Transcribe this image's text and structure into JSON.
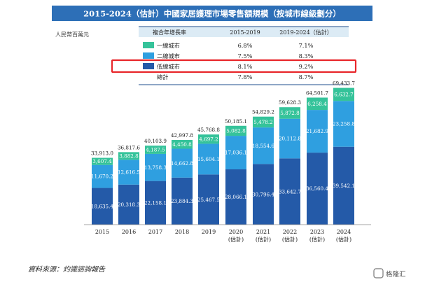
{
  "title": "2015-2024（估計）中國家居護理市場零售額規模（按城市線級劃分）",
  "unit_label": "人民幣百萬元",
  "table": {
    "header": [
      "複合年增長率",
      "2015-2019",
      "2019-2024（估計）"
    ],
    "rows": [
      {
        "label": "一線城市",
        "c1": "6.8%",
        "c2": "7.1%",
        "swatch": "#35c39a"
      },
      {
        "label": "二線城市",
        "c1": "7.5%",
        "c2": "8.3%",
        "swatch": "#2f9fe0"
      },
      {
        "label": "低線城市",
        "c1": "8.1%",
        "c2": "9.2%",
        "swatch": "#245aa8",
        "highlighted": true
      },
      {
        "label": "總計",
        "c1": "7.8%",
        "c2": "8.7%",
        "swatch": null
      }
    ],
    "highlight_color": "#e8262a"
  },
  "chart_data": {
    "type": "bar",
    "stacked": true,
    "categories": [
      "2015",
      "2016",
      "2017",
      "2018",
      "2019",
      "2020",
      "2021",
      "2022",
      "2023",
      "2024"
    ],
    "category_sublabels": [
      "",
      "",
      "",
      "",
      "",
      "(估計)",
      "(估計)",
      "(估計)",
      "(估計)",
      "(估計)"
    ],
    "series": [
      {
        "name": "低線城市",
        "color": "#245aa8",
        "values": [
          18635.4,
          20318.3,
          22158.1,
          23884.3,
          25467.5,
          28066.1,
          30796.4,
          33642.7,
          36560.4,
          39542.1
        ],
        "labels": [
          "18,635.4",
          "20,318.3",
          "22,158.1",
          "23,884.3",
          "25,467.5",
          "28,066.1",
          "30,796.4",
          "33,642.7",
          "36,560.4",
          "39,542.1"
        ]
      },
      {
        "name": "二線城市",
        "color": "#2f9fe0",
        "values": [
          11670.2,
          12616.5,
          13758.3,
          14662.8,
          15604.1,
          17036.1,
          18554.6,
          20112.8,
          21682.9,
          23258.8
        ],
        "labels": [
          "11,670.2",
          "12,616.5",
          "13,758.3",
          "14,662.8",
          "15,604.1",
          "17,036.1",
          "18,554.6",
          "20,112.8",
          "21,682.9",
          "23,258.8"
        ]
      },
      {
        "name": "一線城市",
        "color": "#35c39a",
        "values": [
          3607.4,
          3882.8,
          4187.5,
          4450.8,
          4697.2,
          5082.8,
          5478.2,
          5872.8,
          6258.4,
          6632.7
        ],
        "labels": [
          "3,607.4",
          "3,882.8",
          "4,187.5",
          "4,450.8",
          "4,697.2",
          "5,082.8",
          "5,478.2",
          "5,872.8",
          "6,258.4",
          "6,632.7"
        ]
      }
    ],
    "totals": [
      "33,913.0",
      "36,817.6",
      "40,103.9",
      "42,997.8",
      "45,768.8",
      "50,185.1",
      "54,829.2",
      "59,628.3",
      "64,501.7",
      "69,433.7"
    ],
    "ylim": [
      0,
      70000
    ]
  },
  "source": "資料來源：灼識諮詢報告",
  "watermark": "格隆汇",
  "colors": {
    "title_bar": "#2d6fb7",
    "table_header": "#dcebf5",
    "table_border": "#1f4e8c"
  }
}
